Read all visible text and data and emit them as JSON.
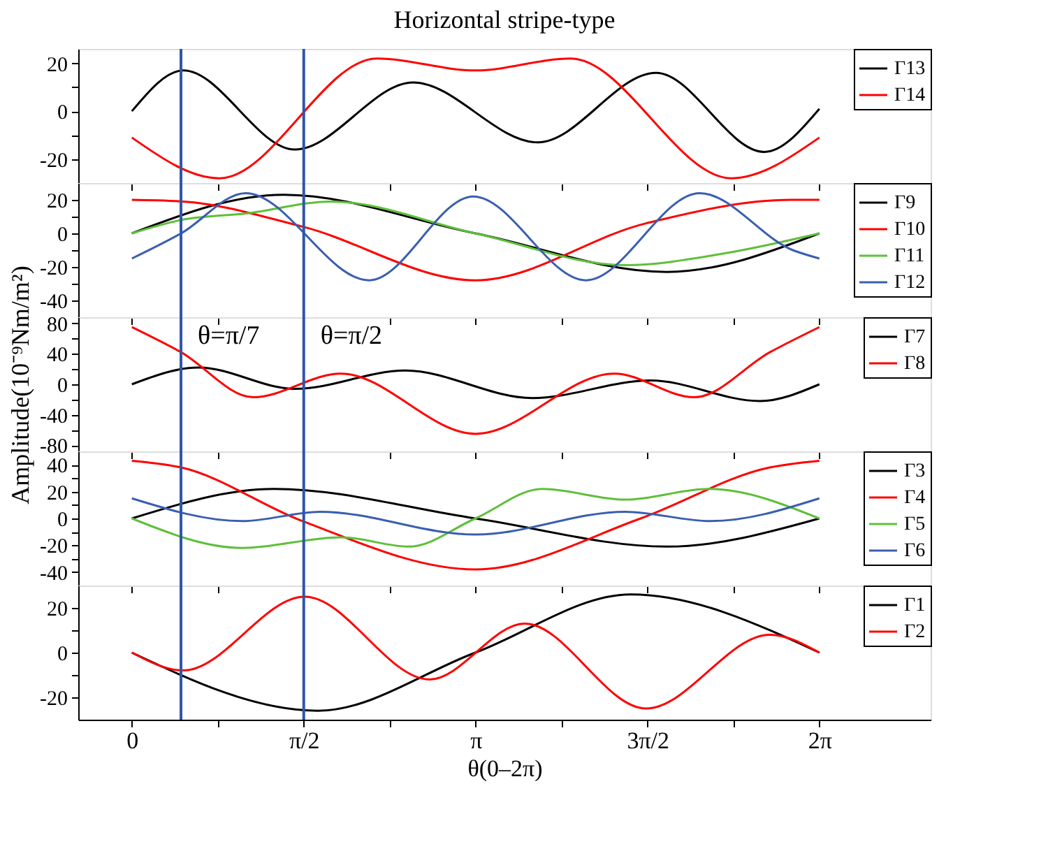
{
  "chart_data": [
    {
      "type": "line",
      "title": "Horizontal stripe-type",
      "xlim": [
        -0.49,
        7.3
      ],
      "ylim": [
        -30,
        26
      ],
      "xticks": [
        {
          "value": 0,
          "label": null
        },
        {
          "value": 0.7854,
          "label": null
        },
        {
          "value": 1.5708,
          "label": null
        },
        {
          "value": 2.3562,
          "label": null
        },
        {
          "value": 3.1416,
          "label": null
        },
        {
          "value": 3.927,
          "label": null
        },
        {
          "value": 4.7124,
          "label": null
        },
        {
          "value": 5.4978,
          "label": null
        },
        {
          "value": 6.2832,
          "label": null
        }
      ],
      "yticks": [
        -20,
        {
          "value": -10,
          "label": null
        },
        0,
        {
          "value": 10,
          "label": null
        },
        20
      ],
      "tick_labels": "y",
      "legend": "top right",
      "grid": false,
      "ref_lines": [
        {
          "axis": "x",
          "value": 0.4488,
          "color": "#2f56a8"
        },
        {
          "axis": "x",
          "value": 1.5708,
          "color": "#2f56a8"
        }
      ],
      "series": [
        {
          "name": "Γ13",
          "color": "#000000",
          "x": [
            0,
            0.47,
            1.49,
            2.57,
            3.71,
            4.79,
            5.78,
            6.2832
          ],
          "values": [
            0,
            17,
            -16,
            12,
            -13,
            16,
            -17,
            1
          ]
        },
        {
          "name": "Γ14",
          "color": "#ff0000",
          "x": [
            0,
            0.8,
            2.24,
            3.14,
            4.01,
            5.48,
            6.2832
          ],
          "values": [
            -11,
            -28,
            22,
            17,
            22,
            -28,
            -11
          ]
        }
      ]
    },
    {
      "type": "line",
      "xlim": [
        -0.49,
        7.3
      ],
      "ylim": [
        -50,
        30
      ],
      "xticks": [
        {
          "value": 0,
          "label": null
        },
        {
          "value": 0.7854,
          "label": null
        },
        {
          "value": 1.5708,
          "label": null
        },
        {
          "value": 2.3562,
          "label": null
        },
        {
          "value": 3.1416,
          "label": null
        },
        {
          "value": 3.927,
          "label": null
        },
        {
          "value": 4.7124,
          "label": null
        },
        {
          "value": 5.4978,
          "label": null
        },
        {
          "value": 6.2832,
          "label": null
        }
      ],
      "yticks": [
        -40,
        {
          "value": -30,
          "label": null
        },
        -20,
        {
          "value": -10,
          "label": null
        },
        0,
        {
          "value": 10,
          "label": null
        },
        20
      ],
      "tick_labels": "y",
      "legend": "top right",
      "grid": false,
      "ref_lines": [
        {
          "axis": "x",
          "value": 0.4488,
          "color": "#2f56a8"
        },
        {
          "axis": "x",
          "value": 1.5708,
          "color": "#2f56a8"
        }
      ],
      "series": [
        {
          "name": "Γ9",
          "color": "#000000",
          "x": [
            0,
            1.39,
            3.14,
            4.89,
            6.2832
          ],
          "values": [
            0,
            23,
            0,
            -23,
            0
          ]
        },
        {
          "name": "Γ10",
          "color": "#ff0000",
          "x": [
            0,
            0.47,
            1.56,
            3.14,
            4.7,
            6.02,
            6.2832
          ],
          "values": [
            20,
            19,
            4,
            -28,
            6,
            20,
            20
          ]
        },
        {
          "name": "Γ11",
          "color": "#5fbf3a",
          "x": [
            0,
            0.45,
            1.06,
            1.82,
            3.14,
            4.51,
            5.41,
            6.2832
          ],
          "values": [
            0,
            8,
            12,
            19,
            0,
            -19,
            -12,
            0
          ]
        },
        {
          "name": "Γ12",
          "color": "#3a5fb0",
          "x": [
            0,
            0.45,
            1.04,
            2.17,
            3.12,
            4.15,
            5.19,
            6.04,
            6.2832
          ],
          "values": [
            -15,
            0,
            24,
            -28,
            22,
            -28,
            24,
            -10,
            -15
          ]
        }
      ]
    },
    {
      "type": "line",
      "ylabel": "Amplitude(10⁻⁹Nm/m²)",
      "xlim": [
        -0.49,
        7.3
      ],
      "ylim": [
        -88,
        88
      ],
      "xticks": [
        {
          "value": 0,
          "label": null
        },
        {
          "value": 0.7854,
          "label": null
        },
        {
          "value": 1.5708,
          "label": null
        },
        {
          "value": 2.3562,
          "label": null
        },
        {
          "value": 3.1416,
          "label": null
        },
        {
          "value": 3.927,
          "label": null
        },
        {
          "value": 4.7124,
          "label": null
        },
        {
          "value": 5.4978,
          "label": null
        },
        {
          "value": 6.2832,
          "label": null
        }
      ],
      "yticks": [
        -80,
        {
          "value": -60,
          "label": null
        },
        -40,
        {
          "value": -20,
          "label": null
        },
        0,
        {
          "value": 20,
          "label": null
        },
        40,
        {
          "value": 60,
          "label": null
        },
        80
      ],
      "tick_labels": "y",
      "legend": "top right",
      "grid": false,
      "ref_lines": [
        {
          "axis": "x",
          "value": 0.4488,
          "label": "θ=π/7",
          "color": "#2f56a8"
        },
        {
          "axis": "x",
          "value": 1.5708,
          "label": "θ=π/2",
          "color": "#2f56a8"
        }
      ],
      "series": [
        {
          "name": "Γ7",
          "color": "#000000",
          "x": [
            0,
            0.61,
            1.49,
            2.5,
            3.66,
            4.74,
            5.74,
            6.2832
          ],
          "values": [
            0,
            22,
            -6,
            18,
            -18,
            5,
            -22,
            0
          ]
        },
        {
          "name": "Γ8",
          "color": "#ff0000",
          "x": [
            0,
            0.45,
            1.11,
            1.91,
            3.14,
            4.41,
            5.14,
            5.83,
            6.2832
          ],
          "values": [
            75,
            42,
            -17,
            14,
            -65,
            14,
            -17,
            42,
            75
          ]
        }
      ]
    },
    {
      "type": "line",
      "xlim": [
        -0.49,
        7.3
      ],
      "ylim": [
        -50,
        50
      ],
      "xticks": [
        {
          "value": 0,
          "label": null
        },
        {
          "value": 0.7854,
          "label": null
        },
        {
          "value": 1.5708,
          "label": null
        },
        {
          "value": 2.3562,
          "label": null
        },
        {
          "value": 3.1416,
          "label": null
        },
        {
          "value": 3.927,
          "label": null
        },
        {
          "value": 4.7124,
          "label": null
        },
        {
          "value": 5.4978,
          "label": null
        },
        {
          "value": 6.2832,
          "label": null
        }
      ],
      "yticks": [
        -40,
        {
          "value": -30,
          "label": null
        },
        -20,
        {
          "value": -10,
          "label": null
        },
        0,
        {
          "value": 10,
          "label": null
        },
        20,
        {
          "value": 30,
          "label": null
        },
        40
      ],
      "tick_labels": "y",
      "legend": "top right",
      "grid": false,
      "ref_lines": [
        {
          "axis": "x",
          "value": 0.4488,
          "color": "#2f56a8"
        },
        {
          "axis": "x",
          "value": 1.5708,
          "color": "#2f56a8"
        }
      ],
      "series": [
        {
          "name": "Γ3",
          "color": "#000000",
          "x": [
            0,
            1.3,
            3.14,
            4.89,
            6.2832
          ],
          "values": [
            0,
            22,
            0,
            -21,
            0
          ]
        },
        {
          "name": "Γ4",
          "color": "#ff0000",
          "x": [
            0,
            0.45,
            1.56,
            3.14,
            4.65,
            5.83,
            6.2832
          ],
          "values": [
            43,
            38,
            -2,
            -38,
            0,
            38,
            43
          ]
        },
        {
          "name": "Γ5",
          "color": "#5fbf3a",
          "x": [
            0,
            1.01,
            1.91,
            2.53,
            3.14,
            3.75,
            4.51,
            5.27,
            6.2832
          ],
          "values": [
            0,
            -22,
            -14,
            -21,
            0,
            22,
            14,
            22,
            0
          ]
        },
        {
          "name": "Γ6",
          "color": "#3a5fb0",
          "x": [
            0,
            1.01,
            1.72,
            3.14,
            4.51,
            5.29,
            6.2832
          ],
          "values": [
            15,
            -2,
            5,
            -12,
            5,
            -2,
            15
          ]
        }
      ]
    },
    {
      "type": "line",
      "xlabel": "θ(0–2π)",
      "xlim": [
        -0.49,
        7.3
      ],
      "ylim": [
        -30,
        30
      ],
      "xticks": [
        {
          "value": 0,
          "label": "0"
        },
        {
          "value": 0.7854,
          "label": null
        },
        {
          "value": 1.5708,
          "label": "π/2"
        },
        {
          "value": 2.3562,
          "label": null
        },
        {
          "value": 3.1416,
          "label": "π"
        },
        {
          "value": 3.927,
          "label": null
        },
        {
          "value": 4.7124,
          "label": "3π/2"
        },
        {
          "value": 5.4978,
          "label": null
        },
        {
          "value": 6.2832,
          "label": "2π"
        }
      ],
      "yticks": [
        -20,
        {
          "value": -10,
          "label": null
        },
        0,
        {
          "value": 10,
          "label": null
        },
        20
      ],
      "legend": "top right",
      "grid": false,
      "ref_lines": [
        {
          "axis": "x",
          "value": 0.4488,
          "color": "#2f56a8"
        },
        {
          "axis": "x",
          "value": 1.5708,
          "color": "#2f56a8"
        }
      ],
      "series": [
        {
          "name": "Γ1",
          "color": "#000000",
          "x": [
            0,
            1.7,
            3.14,
            4.56,
            6.2832
          ],
          "values": [
            0,
            -26,
            0,
            26,
            0
          ]
        },
        {
          "name": "Γ2",
          "color": "#ff0000",
          "x": [
            0,
            0.47,
            1.58,
            2.72,
            3.59,
            4.7,
            5.83,
            6.2832
          ],
          "values": [
            0,
            -8,
            25,
            -12,
            13,
            -25,
            8,
            0
          ]
        }
      ]
    }
  ]
}
